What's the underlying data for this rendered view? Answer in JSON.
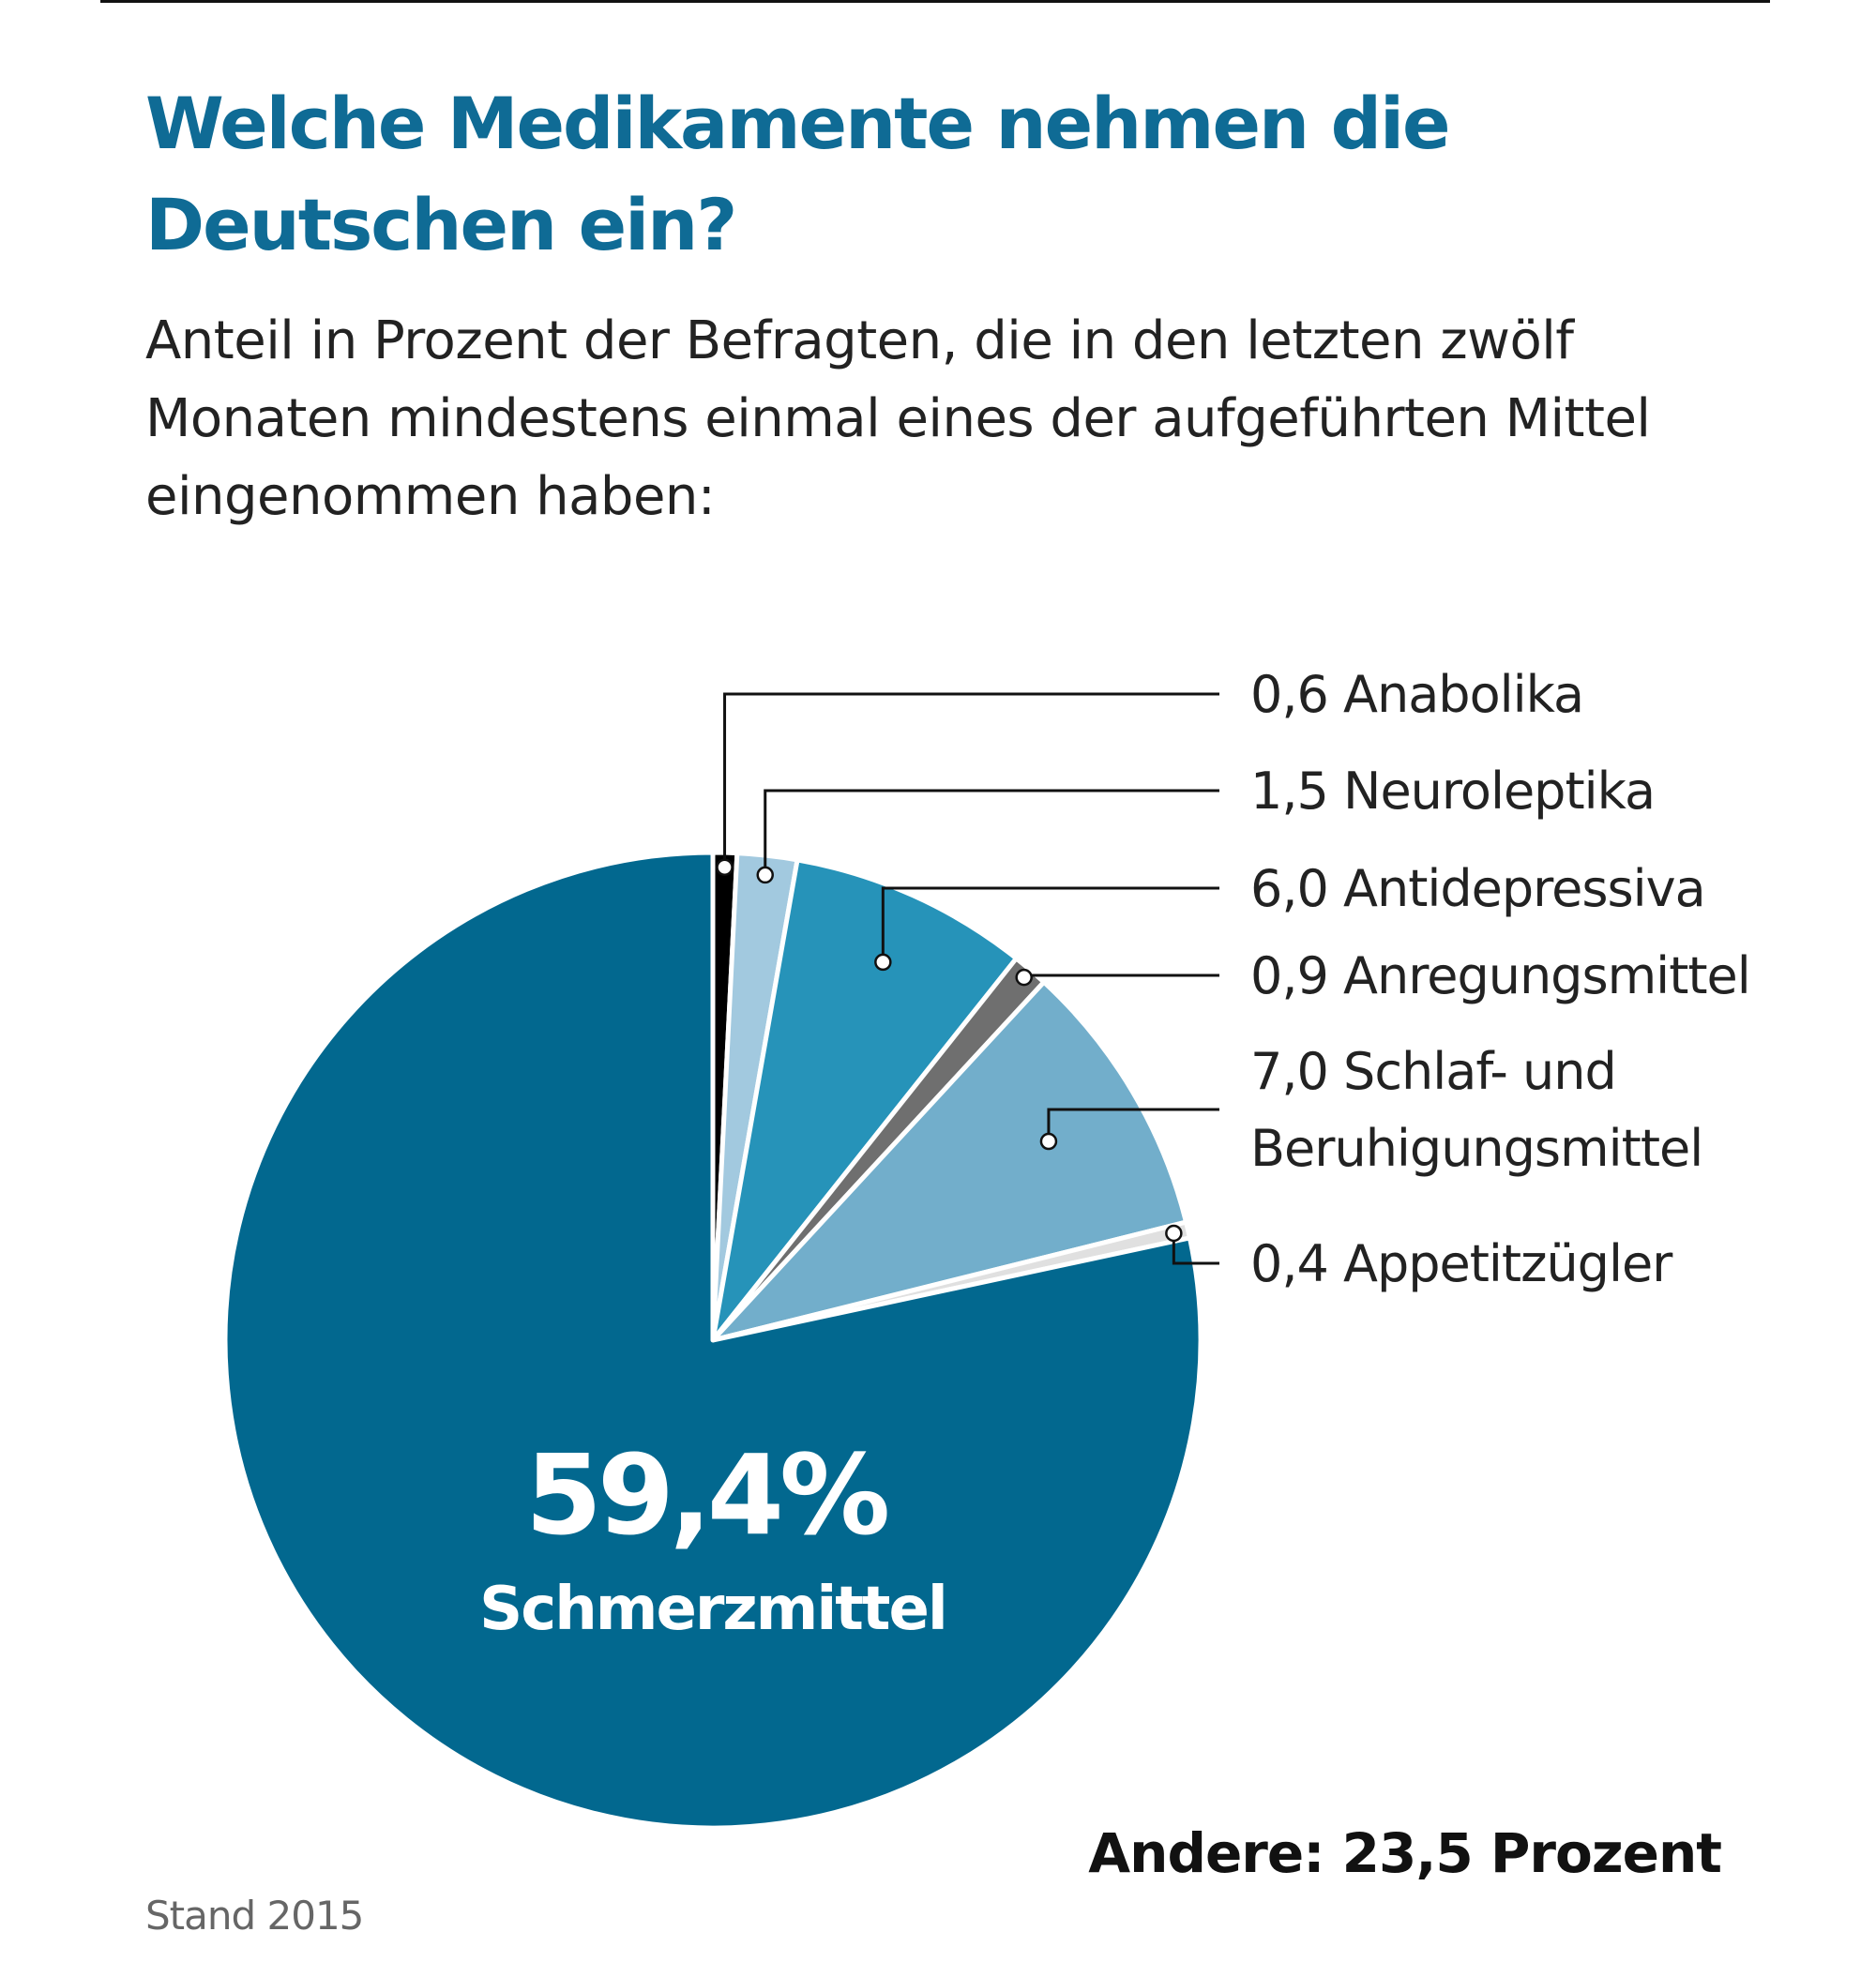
{
  "chart_data": {
    "type": "pie",
    "title": "Welche Medikamente nehmen die Deutschen ein?",
    "subtitle": "Anteil in Prozent der Befragten, die in den letzten zwölf Monaten mindestens einmal eines der aufgeführten Mittel eingenommen haben:",
    "unit": "Prozent",
    "slices": [
      {
        "label": "Anabolika",
        "value": 0.6,
        "value_text": "0,6",
        "color": "#000000"
      },
      {
        "label": "Neuroleptika",
        "value": 1.5,
        "value_text": "1,5",
        "color": "#a2c9df"
      },
      {
        "label": "Antidepressiva",
        "value": 6.0,
        "value_text": "6,0",
        "color": "#2693b9"
      },
      {
        "label": "Anregungsmittel",
        "value": 0.9,
        "value_text": "0,9",
        "color": "#6f6f6f"
      },
      {
        "label": "Schlaf- und Beruhigungsmittel",
        "label_lines": [
          "Schlaf- und",
          "Beruhigungsmittel"
        ],
        "value": 7.0,
        "value_text": "7,0",
        "color": "#72aecb"
      },
      {
        "label": "Appetitzügler",
        "value": 0.4,
        "value_text": "0,4",
        "color": "#e0e0e0"
      },
      {
        "label": "Schmerzmittel",
        "value": 59.4,
        "value_text": "59,4%",
        "color": "#02688f"
      }
    ],
    "other_note": "Andere: 23,5 Prozent",
    "source_note": "Stand 2015"
  },
  "colors": {
    "title": "#0f6b95",
    "primary": "#02688f"
  }
}
